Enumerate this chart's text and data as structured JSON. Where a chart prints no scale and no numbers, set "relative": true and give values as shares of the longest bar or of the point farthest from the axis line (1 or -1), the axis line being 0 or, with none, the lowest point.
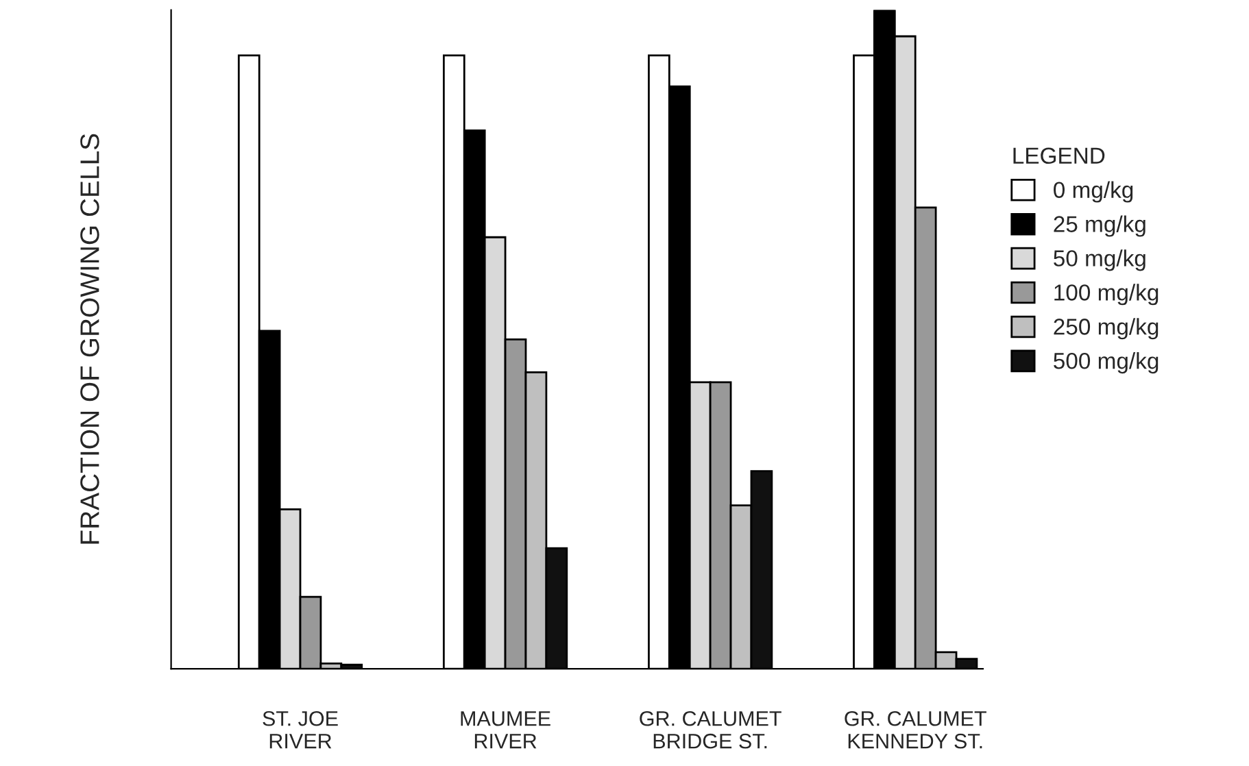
{
  "chart_data": {
    "type": "bar",
    "relative": true,
    "ylabel": "FRACTION OF GROWING CELLS",
    "legend_title": "LEGEND",
    "legend": "right",
    "grid": false,
    "categories": [
      "ST. JOE\nRIVER",
      "MAUMEE\nRIVER",
      "GR. CALUMET\nBRIDGE ST.",
      "GR. CALUMET\nKENNEDY ST."
    ],
    "series": [
      {
        "name": "0 mg/kg",
        "color": "#ffffff",
        "values": [
          0.931,
          0.931,
          0.931,
          0.931
        ]
      },
      {
        "name": "25 mg/kg",
        "color": "#000000",
        "values": [
          0.513,
          0.817,
          0.884,
          1.0
        ]
      },
      {
        "name": "50 mg/kg",
        "color": "#d9d9d9",
        "values": [
          0.242,
          0.655,
          0.435,
          0.96
        ]
      },
      {
        "name": "100 mg/kg",
        "color": "#999999",
        "values": [
          0.109,
          0.5,
          0.435,
          0.7
        ]
      },
      {
        "name": "250 mg/kg",
        "color": "#bfbfbf",
        "values": [
          0.008,
          0.45,
          0.248,
          0.025
        ]
      },
      {
        "name": "500 mg/kg",
        "color": "#111111",
        "values": [
          0.006,
          0.183,
          0.3,
          0.015
        ]
      }
    ]
  }
}
